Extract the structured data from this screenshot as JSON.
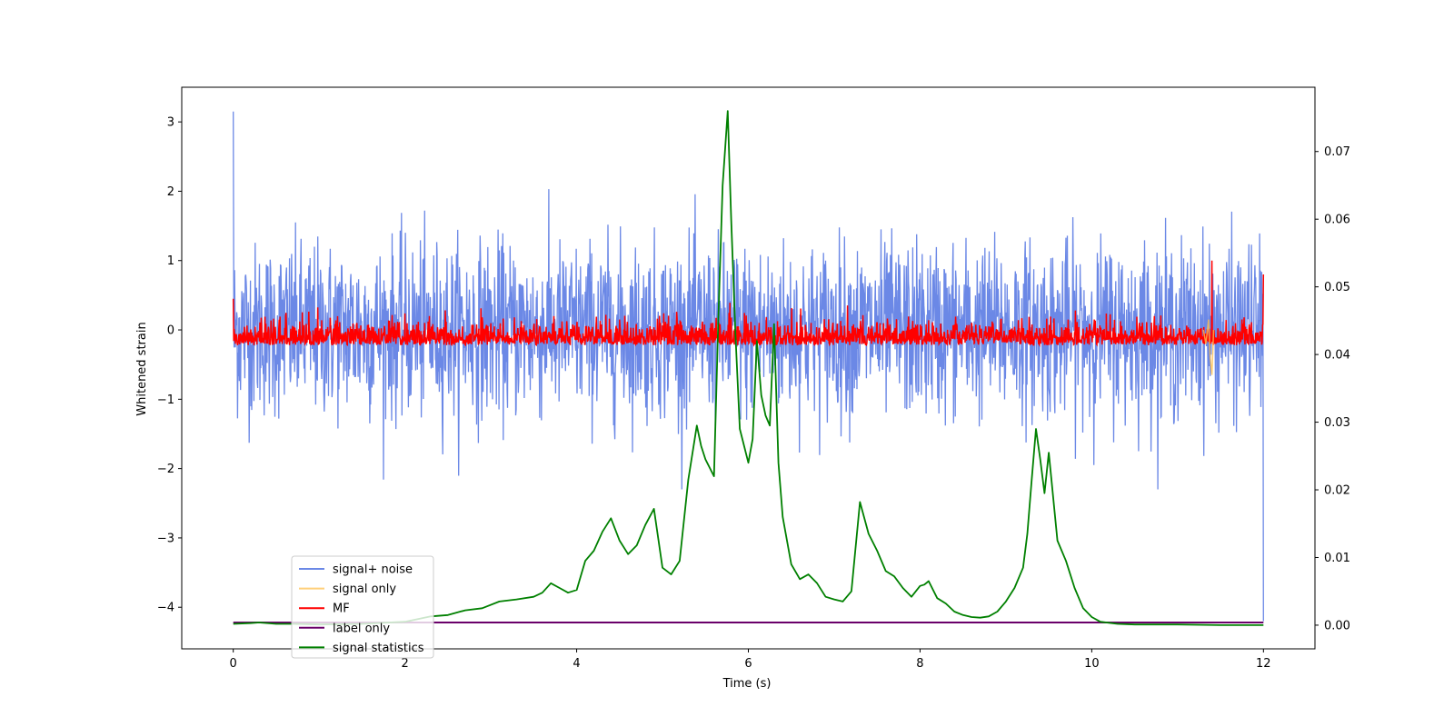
{
  "chart_data": {
    "type": "line",
    "xlabel": "Time (s)",
    "ylabel": "Whitened strain",
    "xlim": [
      -0.6,
      12.6
    ],
    "ylim": [
      -4.6,
      3.5
    ],
    "y2lim": [
      -0.0035,
      0.0795
    ],
    "xticks": [
      0,
      2,
      4,
      6,
      8,
      10,
      12
    ],
    "xtick_labels": [
      "0",
      "2",
      "4",
      "6",
      "8",
      "10",
      "12"
    ],
    "yticks": [
      -4,
      -3,
      -2,
      -1,
      0,
      1,
      2,
      3
    ],
    "ytick_labels": [
      "−4",
      "−3",
      "−2",
      "−1",
      "0",
      "1",
      "2",
      "3"
    ],
    "y2ticks": [
      0.0,
      0.01,
      0.02,
      0.03,
      0.04,
      0.05,
      0.06,
      0.07
    ],
    "y2tick_labels": [
      "0.00",
      "0.01",
      "0.02",
      "0.03",
      "0.04",
      "0.05",
      "0.06",
      "0.07"
    ],
    "grid": false,
    "legend_position": "lower-left",
    "colors": {
      "signal_noise": "#6b88e6",
      "signal_only": "#ffbf4d",
      "mf": "#ff0000",
      "label_only": "#6a006a",
      "statistics": "#008000"
    },
    "series": [
      {
        "name": "signal+ noise",
        "axis": "left",
        "kind": "noise",
        "x_range": [
          0,
          12
        ],
        "amplitude_envelope": {
          "upper_typical": 1.6,
          "upper_peak": 3.15,
          "lower_typical": -1.6,
          "lower_peak": -2.3
        },
        "endpoints": {
          "start": 3.15,
          "end": -4.2
        }
      },
      {
        "name": "signal only",
        "axis": "left",
        "x": [
          11.3,
          11.33,
          11.36,
          11.38,
          11.4,
          11.42
        ],
        "y": [
          0.0,
          -0.2,
          0.15,
          -0.4,
          -0.65,
          0.0
        ]
      },
      {
        "name": "MF",
        "axis": "left",
        "kind": "noise",
        "x_range": [
          0,
          12
        ],
        "amplitude_envelope": {
          "upper_typical": 0.35,
          "upper_peak": 1.0,
          "lower_typical": -0.22,
          "lower_peak": -0.25
        },
        "endpoints": {
          "start": 0.45,
          "end": 0.8
        }
      },
      {
        "name": "label only",
        "axis": "left",
        "x": [
          0,
          12
        ],
        "y": [
          -4.22,
          -4.22
        ]
      },
      {
        "name": "signal statistics",
        "axis": "right",
        "x": [
          0.0,
          0.2,
          0.3,
          0.5,
          0.7,
          1.0,
          1.5,
          2.0,
          2.3,
          2.5,
          2.7,
          2.9,
          3.1,
          3.3,
          3.5,
          3.6,
          3.7,
          3.8,
          3.9,
          4.0,
          4.1,
          4.2,
          4.3,
          4.4,
          4.5,
          4.6,
          4.7,
          4.8,
          4.9,
          5.0,
          5.1,
          5.2,
          5.3,
          5.4,
          5.45,
          5.5,
          5.6,
          5.65,
          5.7,
          5.76,
          5.8,
          5.85,
          5.9,
          6.0,
          6.05,
          6.1,
          6.15,
          6.2,
          6.25,
          6.3,
          6.35,
          6.4,
          6.5,
          6.6,
          6.7,
          6.8,
          6.9,
          7.0,
          7.1,
          7.2,
          7.3,
          7.4,
          7.5,
          7.6,
          7.7,
          7.8,
          7.9,
          8.0,
          8.05,
          8.1,
          8.2,
          8.3,
          8.4,
          8.5,
          8.6,
          8.7,
          8.8,
          8.9,
          9.0,
          9.1,
          9.2,
          9.25,
          9.3,
          9.35,
          9.4,
          9.45,
          9.5,
          9.6,
          9.7,
          9.8,
          9.9,
          10.0,
          10.1,
          10.3,
          10.5,
          11.0,
          11.5,
          12.0
        ],
        "y": [
          0.0002,
          0.0003,
          0.0004,
          0.0002,
          0.0002,
          0.0001,
          0.0002,
          0.0005,
          0.0013,
          0.0015,
          0.0022,
          0.0025,
          0.0035,
          0.0038,
          0.0042,
          0.0048,
          0.0062,
          0.0055,
          0.0048,
          0.0052,
          0.0095,
          0.011,
          0.0138,
          0.0158,
          0.0125,
          0.0105,
          0.0118,
          0.0148,
          0.0172,
          0.0085,
          0.0075,
          0.0095,
          0.0215,
          0.0295,
          0.0265,
          0.0245,
          0.022,
          0.045,
          0.065,
          0.076,
          0.06,
          0.043,
          0.029,
          0.024,
          0.0275,
          0.042,
          0.034,
          0.031,
          0.0295,
          0.0445,
          0.024,
          0.016,
          0.009,
          0.0068,
          0.0075,
          0.0062,
          0.0042,
          0.0038,
          0.0035,
          0.005,
          0.0182,
          0.0135,
          0.011,
          0.008,
          0.0072,
          0.0055,
          0.0042,
          0.0058,
          0.006,
          0.0065,
          0.004,
          0.0032,
          0.002,
          0.0015,
          0.0012,
          0.0011,
          0.0013,
          0.002,
          0.0035,
          0.0055,
          0.0085,
          0.0135,
          0.0215,
          0.029,
          0.0245,
          0.0195,
          0.0255,
          0.0125,
          0.0095,
          0.0055,
          0.0025,
          0.0012,
          0.0005,
          0.0002,
          0.0001,
          0.0001,
          0.0,
          0.0
        ]
      }
    ]
  }
}
